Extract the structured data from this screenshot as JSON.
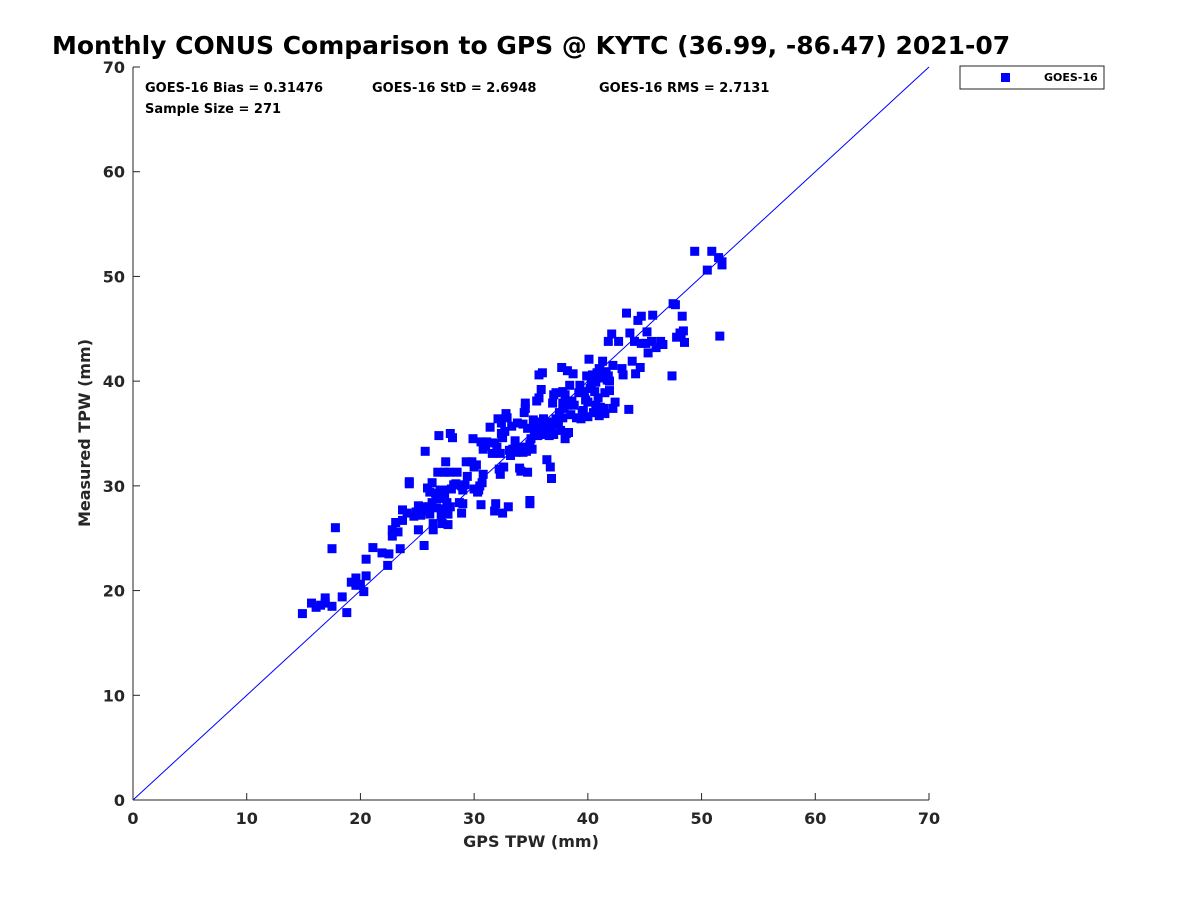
{
  "chart_data": {
    "type": "scatter",
    "title": "Monthly CONUS Comparison to GPS @ KYTC (36.99, -86.47) 2021-07",
    "xlabel": "GPS TPW (mm)",
    "ylabel": "Measured TPW (mm)",
    "xlim": [
      0,
      70
    ],
    "ylim": [
      0,
      70
    ],
    "xticks": [
      "0",
      "10",
      "20",
      "30",
      "40",
      "50",
      "60",
      "70"
    ],
    "yticks": [
      "0",
      "10",
      "20",
      "30",
      "40",
      "50",
      "60",
      "70"
    ],
    "grid": false,
    "legend_position": "outside-top-right",
    "reference_line": {
      "type": "one-to-one",
      "from": [
        0,
        0
      ],
      "to": [
        70,
        70
      ],
      "color": "#0000ff"
    },
    "stats": {
      "bias": "GOES-16 Bias = 0.31476",
      "std": "GOES-16 StD = 2.6948",
      "rms": "GOES-16 RMS = 2.7131",
      "sample": "Sample Size = 271"
    },
    "series": [
      {
        "name": "GOES-16",
        "color": "#0000ff",
        "marker": "square",
        "points": [
          [
            14.9,
            17.8
          ],
          [
            15.7,
            18.8
          ],
          [
            16.1,
            18.4
          ],
          [
            16.5,
            18.6
          ],
          [
            16.9,
            19.3
          ],
          [
            16.9,
            18.8
          ],
          [
            17.5,
            18.5
          ],
          [
            17.5,
            24.0
          ],
          [
            17.8,
            26.0
          ],
          [
            18.4,
            19.4
          ],
          [
            18.8,
            17.9
          ],
          [
            19.2,
            20.8
          ],
          [
            19.6,
            21.2
          ],
          [
            19.6,
            20.5
          ],
          [
            20.0,
            20.6
          ],
          [
            20.3,
            19.9
          ],
          [
            20.5,
            21.4
          ],
          [
            20.5,
            23.0
          ],
          [
            21.1,
            24.1
          ],
          [
            21.9,
            23.6
          ],
          [
            22.4,
            22.4
          ],
          [
            22.5,
            23.5
          ],
          [
            22.8,
            25.2
          ],
          [
            22.8,
            25.8
          ],
          [
            23.1,
            26.5
          ],
          [
            23.3,
            25.6
          ],
          [
            23.5,
            24.0
          ],
          [
            23.7,
            26.7
          ],
          [
            23.7,
            27.7
          ],
          [
            24.1,
            27.4
          ],
          [
            24.3,
            30.4
          ],
          [
            24.3,
            30.2
          ],
          [
            24.7,
            27.1
          ],
          [
            24.9,
            27.5
          ],
          [
            25.1,
            25.8
          ],
          [
            25.1,
            28.1
          ],
          [
            25.3,
            27.2
          ],
          [
            25.5,
            28.0
          ],
          [
            25.6,
            24.3
          ],
          [
            25.7,
            33.3
          ],
          [
            25.8,
            27.6
          ],
          [
            25.9,
            29.8
          ],
          [
            26.0,
            28.0
          ],
          [
            26.1,
            29.4
          ],
          [
            26.1,
            27.3
          ],
          [
            26.3,
            30.3
          ],
          [
            26.3,
            28.4
          ],
          [
            26.4,
            26.4
          ],
          [
            26.4,
            25.8
          ],
          [
            26.6,
            29.3
          ],
          [
            26.7,
            28.8
          ],
          [
            26.7,
            27.9
          ],
          [
            26.8,
            31.3
          ],
          [
            26.9,
            34.8
          ],
          [
            27.0,
            29.6
          ],
          [
            27.0,
            28.8
          ],
          [
            27.1,
            27.1
          ],
          [
            27.2,
            26.4
          ],
          [
            27.3,
            29.6
          ],
          [
            27.4,
            31.3
          ],
          [
            27.4,
            29.2
          ],
          [
            27.4,
            27.8
          ],
          [
            27.5,
            32.3
          ],
          [
            27.6,
            28.4
          ],
          [
            27.7,
            26.3
          ],
          [
            27.7,
            27.3
          ],
          [
            27.8,
            31.3
          ],
          [
            27.9,
            28.0
          ],
          [
            27.9,
            35.0
          ],
          [
            28.0,
            29.7
          ],
          [
            28.1,
            34.6
          ],
          [
            28.2,
            30.1
          ],
          [
            28.4,
            30.2
          ],
          [
            28.5,
            31.3
          ],
          [
            28.7,
            28.4
          ],
          [
            28.9,
            27.4
          ],
          [
            28.9,
            30.0
          ],
          [
            29.0,
            29.6
          ],
          [
            29.0,
            28.3
          ],
          [
            29.2,
            30.1
          ],
          [
            29.3,
            32.3
          ],
          [
            29.4,
            30.9
          ],
          [
            29.8,
            32.3
          ],
          [
            29.9,
            34.5
          ],
          [
            30.0,
            29.7
          ],
          [
            30.0,
            31.8
          ],
          [
            30.2,
            32.0
          ],
          [
            30.3,
            29.4
          ],
          [
            30.4,
            29.6
          ],
          [
            30.5,
            30.0
          ],
          [
            30.6,
            34.2
          ],
          [
            30.6,
            28.2
          ],
          [
            30.7,
            30.3
          ],
          [
            30.8,
            31.1
          ],
          [
            30.8,
            33.5
          ],
          [
            31.0,
            33.8
          ],
          [
            31.1,
            34.2
          ],
          [
            31.4,
            35.6
          ],
          [
            31.6,
            33.1
          ],
          [
            31.8,
            34.1
          ],
          [
            31.8,
            27.6
          ],
          [
            31.9,
            28.3
          ],
          [
            32.0,
            33.7
          ],
          [
            32.1,
            36.4
          ],
          [
            32.2,
            31.6
          ],
          [
            32.3,
            31.1
          ],
          [
            32.3,
            33.1
          ],
          [
            32.4,
            36.0
          ],
          [
            32.4,
            35.0
          ],
          [
            32.5,
            27.4
          ],
          [
            32.5,
            34.6
          ],
          [
            32.6,
            31.8
          ],
          [
            32.7,
            35.2
          ],
          [
            32.8,
            36.6
          ],
          [
            32.8,
            36.9
          ],
          [
            32.9,
            36.5
          ],
          [
            33.0,
            28.0
          ],
          [
            33.1,
            33.4
          ],
          [
            33.2,
            32.9
          ],
          [
            33.3,
            35.7
          ],
          [
            33.4,
            33.5
          ],
          [
            33.6,
            34.3
          ],
          [
            33.7,
            33.2
          ],
          [
            33.8,
            33.6
          ],
          [
            33.8,
            36.0
          ],
          [
            34.0,
            31.7
          ],
          [
            34.1,
            31.4
          ],
          [
            34.2,
            33.7
          ],
          [
            34.3,
            33.2
          ],
          [
            34.3,
            35.9
          ],
          [
            34.4,
            37.0
          ],
          [
            34.5,
            37.9
          ],
          [
            34.5,
            37.4
          ],
          [
            34.6,
            33.3
          ],
          [
            34.7,
            31.3
          ],
          [
            34.7,
            35.5
          ],
          [
            34.9,
            34.0
          ],
          [
            34.9,
            28.6
          ],
          [
            34.9,
            28.3
          ],
          [
            35.0,
            34.5
          ],
          [
            35.1,
            33.5
          ],
          [
            35.2,
            36.3
          ],
          [
            35.3,
            35.2
          ],
          [
            35.4,
            35.7
          ],
          [
            35.5,
            38.1
          ],
          [
            35.5,
            35.9
          ],
          [
            35.6,
            34.8
          ],
          [
            35.7,
            40.6
          ],
          [
            35.7,
            38.4
          ],
          [
            35.7,
            35.6
          ],
          [
            35.8,
            35.0
          ],
          [
            35.9,
            39.2
          ],
          [
            35.9,
            36.1
          ],
          [
            36.0,
            40.8
          ],
          [
            36.0,
            35.3
          ],
          [
            36.0,
            34.9
          ],
          [
            36.1,
            36.4
          ],
          [
            36.2,
            35.6
          ],
          [
            36.2,
            35.8
          ],
          [
            36.4,
            36.1
          ],
          [
            36.4,
            32.5
          ],
          [
            36.4,
            35.7
          ],
          [
            36.6,
            34.8
          ],
          [
            36.7,
            36.0
          ],
          [
            36.7,
            31.8
          ],
          [
            36.8,
            30.7
          ],
          [
            36.8,
            35.4
          ],
          [
            36.9,
            36.1
          ],
          [
            36.9,
            37.9
          ],
          [
            37.0,
            34.9
          ],
          [
            37.0,
            38.7
          ],
          [
            37.1,
            36.0
          ],
          [
            37.2,
            38.9
          ],
          [
            37.2,
            36.4
          ],
          [
            37.4,
            35.9
          ],
          [
            37.4,
            36.2
          ],
          [
            37.5,
            37.0
          ],
          [
            37.6,
            35.3
          ],
          [
            37.7,
            41.3
          ],
          [
            37.8,
            36.5
          ],
          [
            37.8,
            39.0
          ],
          [
            37.8,
            37.9
          ],
          [
            37.9,
            37.4
          ],
          [
            38.0,
            34.5
          ],
          [
            38.0,
            38.7
          ],
          [
            38.1,
            35.0
          ],
          [
            38.2,
            41.0
          ],
          [
            38.2,
            37.7
          ],
          [
            38.3,
            35.1
          ],
          [
            38.4,
            39.6
          ],
          [
            38.5,
            36.8
          ],
          [
            38.6,
            38.1
          ],
          [
            38.7,
            40.7
          ],
          [
            38.8,
            37.7
          ],
          [
            39.0,
            36.5
          ],
          [
            39.2,
            38.9
          ],
          [
            39.3,
            39.6
          ],
          [
            39.4,
            36.4
          ],
          [
            39.5,
            37.0
          ],
          [
            39.6,
            37.2
          ],
          [
            39.7,
            39.0
          ],
          [
            39.8,
            38.2
          ],
          [
            39.9,
            40.5
          ],
          [
            40.0,
            38.0
          ],
          [
            40.0,
            36.6
          ],
          [
            40.1,
            42.1
          ],
          [
            40.2,
            39.3
          ],
          [
            40.3,
            39.8
          ],
          [
            40.3,
            40.2
          ],
          [
            40.4,
            40.6
          ],
          [
            40.5,
            37.0
          ],
          [
            40.6,
            39.0
          ],
          [
            40.7,
            37.7
          ],
          [
            40.7,
            39.9
          ],
          [
            40.8,
            40.8
          ],
          [
            40.9,
            38.4
          ],
          [
            41.0,
            41.2
          ],
          [
            41.0,
            36.7
          ],
          [
            41.1,
            37.5
          ],
          [
            41.2,
            40.3
          ],
          [
            41.3,
            41.9
          ],
          [
            41.4,
            37.4
          ],
          [
            41.5,
            38.9
          ],
          [
            41.5,
            36.9
          ],
          [
            41.6,
            40.9
          ],
          [
            41.7,
            40.1
          ],
          [
            41.8,
            40.5
          ],
          [
            41.8,
            43.8
          ],
          [
            41.9,
            39.1
          ],
          [
            41.9,
            40.0
          ],
          [
            42.1,
            44.5
          ],
          [
            42.2,
            37.4
          ],
          [
            42.2,
            41.5
          ],
          [
            42.4,
            38.0
          ],
          [
            42.7,
            43.8
          ],
          [
            43.0,
            41.2
          ],
          [
            43.1,
            40.6
          ],
          [
            43.4,
            46.5
          ],
          [
            43.6,
            37.3
          ],
          [
            43.7,
            44.6
          ],
          [
            43.9,
            41.9
          ],
          [
            44.1,
            43.8
          ],
          [
            44.2,
            40.7
          ],
          [
            44.4,
            45.8
          ],
          [
            44.6,
            41.3
          ],
          [
            44.7,
            46.2
          ],
          [
            44.7,
            43.6
          ],
          [
            45.1,
            43.6
          ],
          [
            45.2,
            44.7
          ],
          [
            45.3,
            42.7
          ],
          [
            45.6,
            43.8
          ],
          [
            45.7,
            46.3
          ],
          [
            46.0,
            43.2
          ],
          [
            46.4,
            43.8
          ],
          [
            46.6,
            43.5
          ],
          [
            47.4,
            40.5
          ],
          [
            47.5,
            47.4
          ],
          [
            47.7,
            47.3
          ],
          [
            47.8,
            44.2
          ],
          [
            48.1,
            44.6
          ],
          [
            48.2,
            44.3
          ],
          [
            48.3,
            46.2
          ],
          [
            48.4,
            44.8
          ],
          [
            48.5,
            43.7
          ],
          [
            49.4,
            52.4
          ],
          [
            50.5,
            50.6
          ],
          [
            50.9,
            52.4
          ],
          [
            51.5,
            51.8
          ],
          [
            51.6,
            44.3
          ],
          [
            51.8,
            51.1
          ],
          [
            51.8,
            51.4
          ]
        ]
      }
    ]
  }
}
